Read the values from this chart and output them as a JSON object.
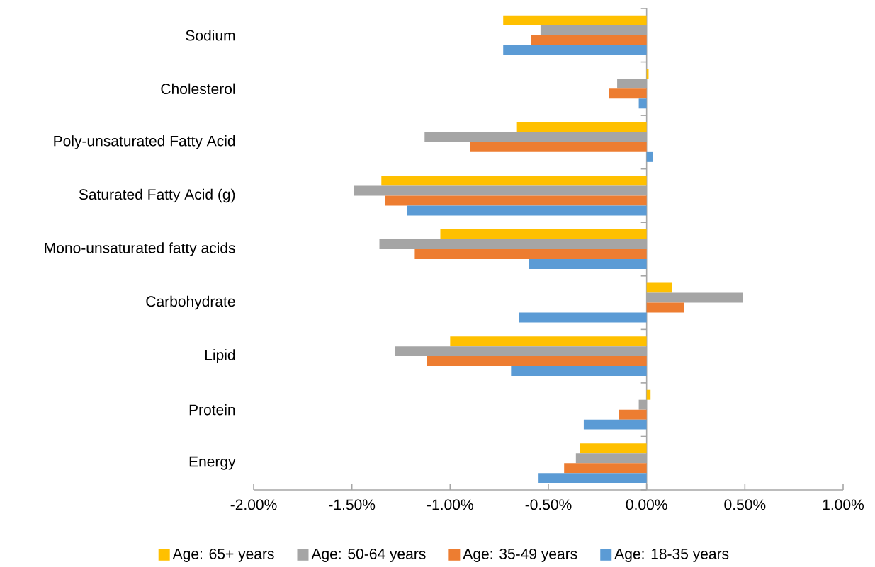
{
  "chart_data": {
    "type": "bar",
    "orientation": "horizontal",
    "categories": [
      "Sodium",
      "Cholesterol",
      "Poly-unsaturated Fatty Acid",
      "Saturated Fatty Acid (g)",
      "Mono-unsaturated fatty acids",
      "Carbohydrate",
      "Lipid",
      "Protein",
      "Energy"
    ],
    "series": [
      {
        "name": "Age: 65+ years",
        "color": "#ffc000",
        "values": [
          -0.73,
          0.01,
          -0.66,
          -1.35,
          -1.05,
          0.13,
          -1.0,
          0.02,
          -0.34
        ]
      },
      {
        "name": "Age: 50-64 years",
        "color": "#a5a5a5",
        "values": [
          -0.54,
          -0.15,
          -1.13,
          -1.49,
          -1.36,
          0.49,
          -1.28,
          -0.04,
          -0.36
        ]
      },
      {
        "name": "Age: 35-49 years",
        "color": "#ed7d31",
        "values": [
          -0.59,
          -0.19,
          -0.9,
          -1.33,
          -1.18,
          0.19,
          -1.12,
          -0.14,
          -0.42
        ]
      },
      {
        "name": "Age: 18-35 years",
        "color": "#5b9bd5",
        "values": [
          -0.73,
          -0.04,
          0.03,
          -1.22,
          -0.6,
          -0.65,
          -0.69,
          -0.32,
          -0.55
        ]
      }
    ],
    "xlim": [
      -2,
      1
    ],
    "xticks": [
      {
        "value": -2,
        "label": "-2.00%"
      },
      {
        "value": -1.5,
        "label": "-1.50%"
      },
      {
        "value": -1,
        "label": "-1.00%"
      },
      {
        "value": -0.5,
        "label": "-0.50%"
      },
      {
        "value": 0,
        "label": "0.00%"
      },
      {
        "value": 0.5,
        "label": "0.50%"
      },
      {
        "value": 1,
        "label": "1.00%"
      }
    ],
    "legend": "bottom"
  }
}
